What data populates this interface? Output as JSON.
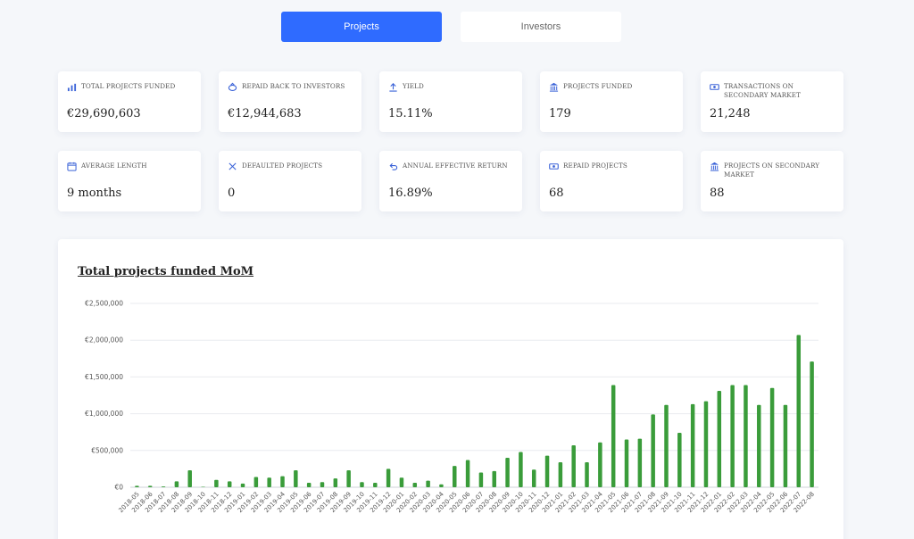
{
  "tabs": [
    {
      "label": "Projects",
      "active": true
    },
    {
      "label": "Investors",
      "active": false
    }
  ],
  "stats": [
    {
      "label": "TOTAL PROJECTS FUNDED",
      "value": "€29,690,603",
      "icon": "bar-chart-icon"
    },
    {
      "label": "REPAID BACK TO INVESTORS",
      "value": "€12,944,683",
      "icon": "piggy-bank-icon"
    },
    {
      "label": "YIELD",
      "value": "15.11%",
      "icon": "upload-arrow-icon"
    },
    {
      "label": "PROJECTS FUNDED",
      "value": "179",
      "icon": "bank-icon"
    },
    {
      "label": "TRANSACTIONS ON SECONDARY MARKET",
      "value": "21,248",
      "icon": "banknote-icon"
    },
    {
      "label": "AVERAGE LENGTH",
      "value": "9 months",
      "icon": "calendar-icon"
    },
    {
      "label": "DEFAULTED PROJECTS",
      "value": "0",
      "icon": "close-icon"
    },
    {
      "label": "ANNUAL EFFECTIVE RETURN",
      "value": "16.89%",
      "icon": "undo-arrow-icon"
    },
    {
      "label": "REPAID PROJECTS",
      "value": "68",
      "icon": "banknote-icon"
    },
    {
      "label": "PROJECTS ON SECONDARY MARKET",
      "value": "88",
      "icon": "bank-icon"
    }
  ],
  "colors": {
    "accent": "#2f6bff",
    "bar": "#3a9c3a",
    "icon": "#3b63d8"
  },
  "chart_data": {
    "type": "bar",
    "title": "Total projects funded MoM",
    "xlabel": "",
    "ylabel": "",
    "ylim": [
      0,
      2500000
    ],
    "yticks": [
      0,
      500000,
      1000000,
      1500000,
      2000000,
      2500000
    ],
    "ytick_labels": [
      "€0",
      "€500,000",
      "€1,000,000",
      "€1,500,000",
      "€2,000,000",
      "€2,500,000"
    ],
    "grid": true,
    "categories": [
      "2018-05",
      "2018-06",
      "2018-07",
      "2018-08",
      "2018-09",
      "2018-10",
      "2018-11",
      "2018-12",
      "2019-01",
      "2019-02",
      "2019-03",
      "2019-04",
      "2019-05",
      "2019-06",
      "2019-07",
      "2019-08",
      "2019-09",
      "2019-10",
      "2019-11",
      "2019-12",
      "2020-01",
      "2020-02",
      "2020-03",
      "2020-04",
      "2020-05",
      "2020-06",
      "2020-07",
      "2020-08",
      "2020-09",
      "2020-10",
      "2020-11",
      "2020-12",
      "2021-01",
      "2021-02",
      "2021-03",
      "2021-04",
      "2021-05",
      "2021-06",
      "2021-07",
      "2021-08",
      "2021-09",
      "2021-10",
      "2021-11",
      "2021-12",
      "2022-01",
      "2022-02",
      "2022-03",
      "2022-04",
      "2022-05",
      "2022-06",
      "2022-07",
      "2022-08"
    ],
    "values": [
      20000,
      20000,
      10000,
      80000,
      230000,
      0,
      100000,
      80000,
      50000,
      140000,
      130000,
      150000,
      230000,
      60000,
      70000,
      120000,
      230000,
      70000,
      60000,
      250000,
      130000,
      60000,
      90000,
      40000,
      290000,
      370000,
      200000,
      220000,
      400000,
      480000,
      240000,
      430000,
      340000,
      570000,
      340000,
      610000,
      1390000,
      650000,
      660000,
      990000,
      1120000,
      740000,
      1130000,
      1170000,
      1310000,
      1390000,
      1390000,
      1120000,
      1350000,
      1120000,
      2070000,
      1710000
    ]
  }
}
